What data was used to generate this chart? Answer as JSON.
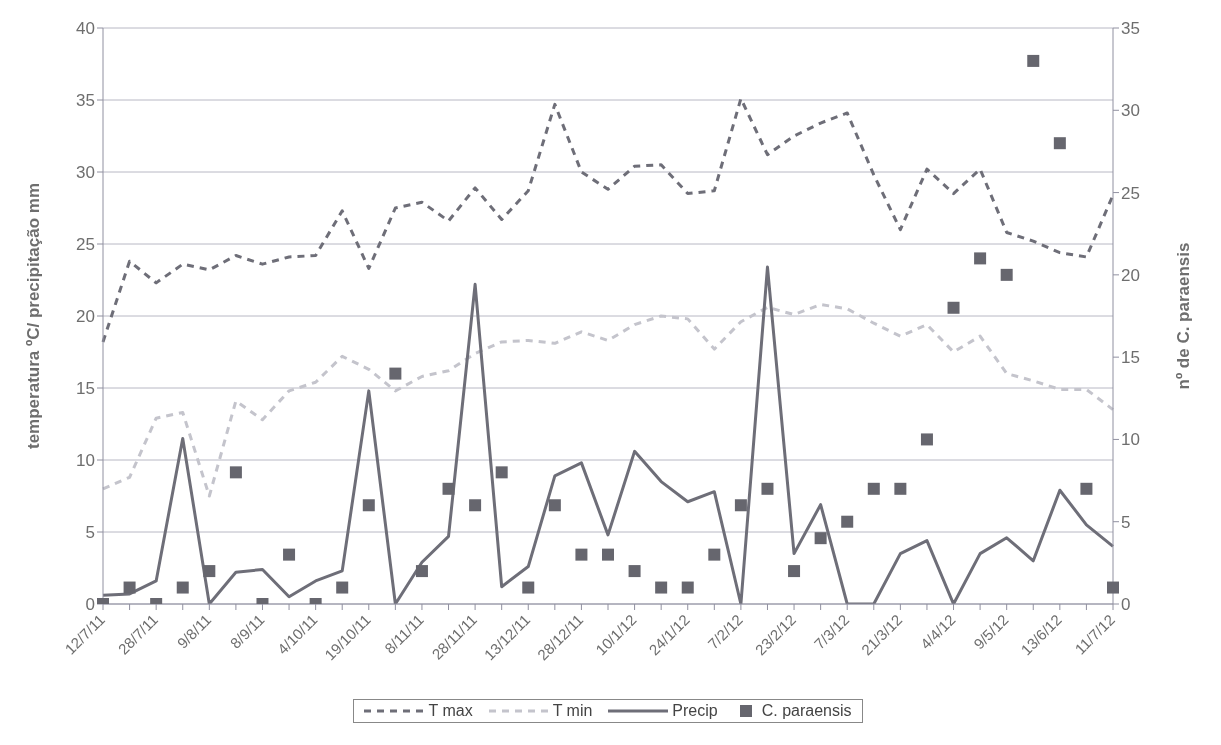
{
  "chart_data": {
    "type": "line",
    "categories": [
      "12/7/11",
      null,
      "28/7/11",
      null,
      "9/8/11",
      null,
      "8/9/11",
      null,
      "4/10/11",
      null,
      "19/10/11",
      null,
      "8/11/11",
      null,
      "28/11/11",
      null,
      "13/12/11",
      null,
      "28/12/11",
      null,
      "10/1/12",
      null,
      "24/1/12",
      null,
      "7/2/12",
      null,
      "23/2/12",
      null,
      "7/3/12",
      null,
      "21/3/12",
      null,
      "4/4/12",
      null,
      "9/5/12",
      null,
      "13/6/12",
      null,
      "11/7/12"
    ],
    "series": [
      {
        "name": "T max",
        "color": "#6e6e78",
        "line_style": "dashed",
        "marker": "none",
        "values": [
          18.2,
          23.8,
          22.3,
          23.6,
          23.2,
          24.2,
          23.6,
          24.1,
          24.2,
          27.3,
          23.3,
          27.5,
          27.9,
          26.6,
          28.9,
          26.7,
          28.7,
          34.7,
          30,
          28.8,
          30.4,
          30.5,
          28.5,
          28.7,
          35.1,
          31.2,
          32.5,
          33.4,
          34.1,
          29.8,
          26,
          30.2,
          28.5,
          30.2,
          25.8,
          25.2,
          24.4,
          24.1,
          28.4
        ]
      },
      {
        "name": "T min",
        "color": "#c4c4cc",
        "line_style": "dashed",
        "marker": "none",
        "values": [
          8,
          8.8,
          12.9,
          13.3,
          7.5,
          14.1,
          12.8,
          14.8,
          15.4,
          17.2,
          16.3,
          14.8,
          15.8,
          16.2,
          17.4,
          18.2,
          18.3,
          18.1,
          18.9,
          18.3,
          19.4,
          20,
          19.8,
          17.7,
          19.6,
          20.6,
          20.1,
          20.8,
          20.5,
          19.5,
          18.6,
          19.4,
          17.5,
          18.6,
          16,
          15.5,
          14.9,
          14.9,
          13.5
        ]
      },
      {
        "name": "Precip",
        "color": "#6e6e78",
        "line_style": "solid",
        "marker": "none",
        "values": [
          0.6,
          0.7,
          1.6,
          11.5,
          0,
          2.2,
          2.4,
          0.5,
          1.6,
          2.3,
          14.8,
          0,
          2.9,
          4.7,
          22.2,
          1.2,
          2.6,
          8.9,
          9.8,
          4.8,
          10.6,
          8.5,
          7.1,
          7.8,
          0,
          23.4,
          3.5,
          6.9,
          0,
          0,
          3.5,
          4.4,
          0,
          3.5,
          4.6,
          3,
          7.9,
          5.5,
          4
        ]
      },
      {
        "name": "C. paraensis",
        "type": "scatter",
        "axis": "y2",
        "color": "#66666e",
        "marker": "square",
        "values": [
          0,
          1,
          0,
          1,
          2,
          8,
          0,
          3,
          0,
          1,
          6,
          14,
          2,
          7,
          6,
          8,
          1,
          6,
          3,
          3,
          2,
          1,
          1,
          3,
          6,
          7,
          2,
          4,
          5,
          7,
          7,
          10,
          18,
          21,
          20,
          33,
          28,
          7,
          1
        ]
      }
    ],
    "ylabel": "temperatura ºC/ precipitação mm",
    "y2label": "nº de C. paraensis",
    "ylim": [
      0,
      40
    ],
    "yticks": [
      0,
      5,
      10,
      15,
      20,
      25,
      30,
      35,
      40
    ],
    "y2lim": [
      0,
      35
    ],
    "y2ticks": [
      0,
      5,
      10,
      15,
      20,
      25,
      30,
      35
    ],
    "grid": "y",
    "legend": "bottom"
  }
}
